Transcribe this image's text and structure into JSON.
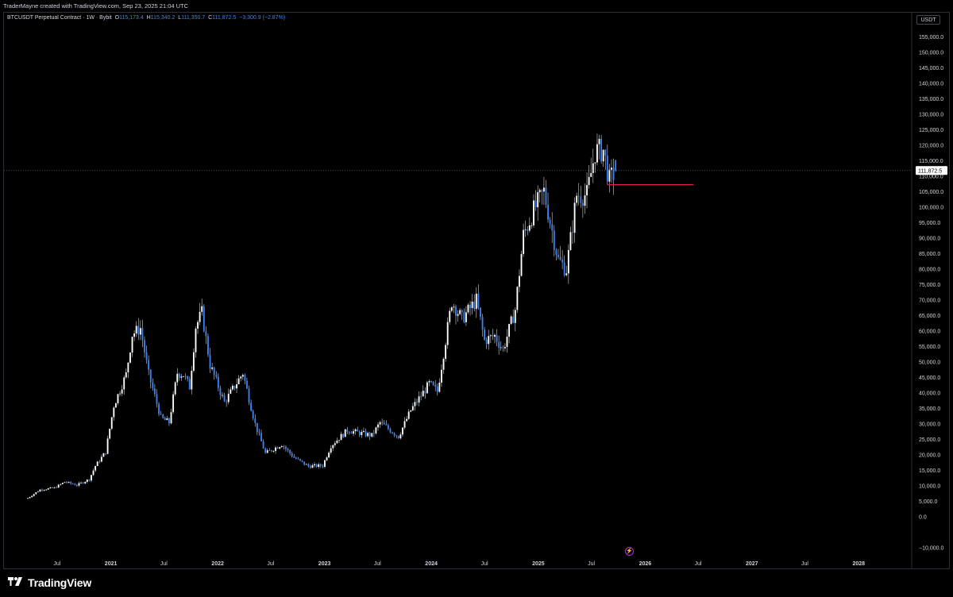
{
  "header": {
    "attribution": "TraderMayne created with TradingView.com, Sep 23, 2025 21:04 UTC"
  },
  "legend": {
    "symbol": "BTCUSDT Perpetual Contract · 1W · Bybit",
    "open_label": "O",
    "open": "115,173.4",
    "high_label": "H",
    "high": "115,340.2",
    "low_label": "L",
    "low": "111,350.7",
    "close_label": "C",
    "close": "111,872.5",
    "change": "−3,300.9 (−2.87%)"
  },
  "currency_button": "USDT",
  "price_label": "111,872.5",
  "brand": {
    "name": "TradingView"
  },
  "lightning_icon": "⚡",
  "colors": {
    "up": "#ffffff",
    "down": "#3b82f6",
    "wick": "#d1d4dc",
    "support_line": "#e11d48",
    "grid": "#000000",
    "crosshair": "#787b86"
  },
  "chart_data": {
    "type": "candlestick",
    "timeframe": "1W",
    "ylim": [
      -10000,
      160000
    ],
    "y_ticks": [
      "155,000.0",
      "150,000.0",
      "145,000.0",
      "140,000.0",
      "135,000.0",
      "130,000.0",
      "125,000.0",
      "120,000.0",
      "115,000.0",
      "110,000.0",
      "105,000.0",
      "100,000.0",
      "95,000.0",
      "90,000.0",
      "85,000.0",
      "80,000.0",
      "75,000.0",
      "70,000.0",
      "65,000.0",
      "60,000.0",
      "55,000.0",
      "50,000.0",
      "45,000.0",
      "40,000.0",
      "35,000.0",
      "30,000.0",
      "25,000.0",
      "20,000.0",
      "15,000.0",
      "10,000.0",
      "5,000.0",
      "0.0",
      "−10,000.0"
    ],
    "y_tick_values": [
      155000,
      150000,
      145000,
      140000,
      135000,
      130000,
      125000,
      120000,
      115000,
      110000,
      105000,
      100000,
      95000,
      90000,
      85000,
      80000,
      75000,
      70000,
      65000,
      60000,
      55000,
      50000,
      45000,
      40000,
      35000,
      30000,
      25000,
      20000,
      15000,
      10000,
      5000,
      0,
      -10000
    ],
    "x_ticks": [
      {
        "label": "Jul",
        "date": "2020-07-01",
        "bold": false
      },
      {
        "label": "2021",
        "date": "2021-01-01",
        "bold": true
      },
      {
        "label": "Jul",
        "date": "2021-07-01",
        "bold": false
      },
      {
        "label": "2022",
        "date": "2022-01-01",
        "bold": true
      },
      {
        "label": "Jul",
        "date": "2022-07-01",
        "bold": false
      },
      {
        "label": "2023",
        "date": "2023-01-01",
        "bold": true
      },
      {
        "label": "Jul",
        "date": "2023-07-01",
        "bold": false
      },
      {
        "label": "2024",
        "date": "2024-01-01",
        "bold": true
      },
      {
        "label": "Jul",
        "date": "2024-07-01",
        "bold": false
      },
      {
        "label": "2025",
        "date": "2025-01-01",
        "bold": true
      },
      {
        "label": "Jul",
        "date": "2025-07-01",
        "bold": false
      },
      {
        "label": "2026",
        "date": "2026-01-01",
        "bold": true
      },
      {
        "label": "Jul",
        "date": "2026-07-01",
        "bold": false
      },
      {
        "label": "2027",
        "date": "2027-01-01",
        "bold": true
      },
      {
        "label": "Jul",
        "date": "2027-07-01",
        "bold": false
      },
      {
        "label": "2028",
        "date": "2028-01-01",
        "bold": true
      }
    ],
    "x_range": [
      "2020-03-23",
      "2028-04-15"
    ],
    "last_close": 111872.5,
    "support_line": {
      "value": 107300,
      "from": "2025-08-25",
      "to": "2026-06-15"
    },
    "close_anchors": [
      [
        "2020-03-23",
        6100
      ],
      [
        "2020-05-04",
        8800
      ],
      [
        "2020-06-22",
        9400
      ],
      [
        "2020-07-27",
        11300
      ],
      [
        "2020-09-07",
        10300
      ],
      [
        "2020-10-19",
        12200
      ],
      [
        "2020-11-09",
        16500
      ],
      [
        "2020-12-14",
        21000
      ],
      [
        "2021-01-11",
        36000
      ],
      [
        "2021-02-22",
        46000
      ],
      [
        "2021-03-15",
        59000
      ],
      [
        "2021-04-12",
        61000
      ],
      [
        "2021-05-10",
        46000
      ],
      [
        "2021-06-21",
        32000
      ],
      [
        "2021-07-19",
        30500
      ],
      [
        "2021-08-16",
        46500
      ],
      [
        "2021-09-06",
        46000
      ],
      [
        "2021-09-27",
        42000
      ],
      [
        "2021-10-18",
        61500
      ],
      [
        "2021-11-08",
        66000
      ],
      [
        "2021-12-06",
        49000
      ],
      [
        "2022-01-24",
        37000
      ],
      [
        "2022-03-28",
        46500
      ],
      [
        "2022-05-09",
        30000
      ],
      [
        "2022-06-13",
        20500
      ],
      [
        "2022-08-08",
        23500
      ],
      [
        "2022-09-19",
        19200
      ],
      [
        "2022-11-07",
        16400
      ],
      [
        "2022-12-26",
        16600
      ],
      [
        "2023-01-23",
        23000
      ],
      [
        "2023-03-20",
        28000
      ],
      [
        "2023-06-12",
        26300
      ],
      [
        "2023-07-10",
        30500
      ],
      [
        "2023-09-11",
        26000
      ],
      [
        "2023-10-23",
        34500
      ],
      [
        "2023-12-25",
        43000
      ],
      [
        "2024-01-22",
        40500
      ],
      [
        "2024-03-11",
        69500
      ],
      [
        "2024-04-15",
        64000
      ],
      [
        "2024-06-03",
        70000
      ],
      [
        "2024-07-01",
        57000
      ],
      [
        "2024-08-05",
        58500
      ],
      [
        "2024-09-02",
        54000
      ],
      [
        "2024-10-14",
        67000
      ],
      [
        "2024-11-11",
        91000
      ],
      [
        "2024-12-16",
        99000
      ],
      [
        "2025-01-20",
        105000
      ],
      [
        "2025-03-10",
        83000
      ],
      [
        "2025-04-07",
        80000
      ],
      [
        "2025-05-12",
        104000
      ],
      [
        "2025-06-16",
        104000
      ],
      [
        "2025-07-14",
        118000
      ],
      [
        "2025-08-11",
        118500
      ],
      [
        "2025-09-01",
        108500
      ],
      [
        "2025-09-22",
        111872.5
      ]
    ]
  }
}
